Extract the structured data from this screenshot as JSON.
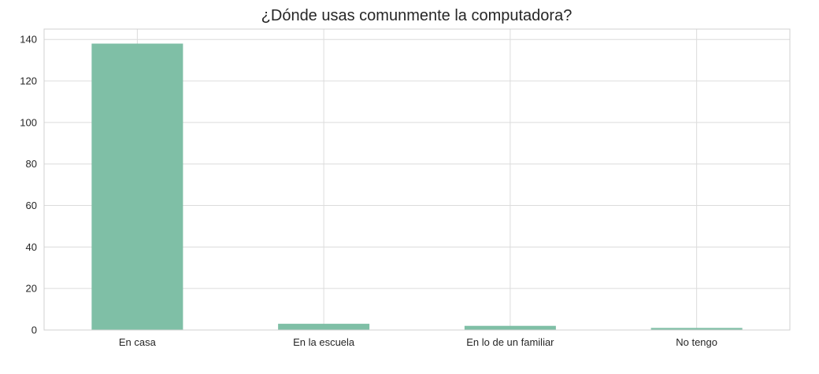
{
  "chart_data": {
    "type": "bar",
    "title": "¿Dónde usas comunmente la computadora?",
    "categories": [
      "En casa",
      "En la escuela",
      "En lo de un familiar",
      "No tengo"
    ],
    "values": [
      138,
      3,
      2,
      1
    ],
    "ylim": [
      0,
      145
    ],
    "yticks": [
      0,
      20,
      40,
      60,
      80,
      100,
      120,
      140
    ],
    "grid": true,
    "bar_color": "#7fbfa6"
  }
}
